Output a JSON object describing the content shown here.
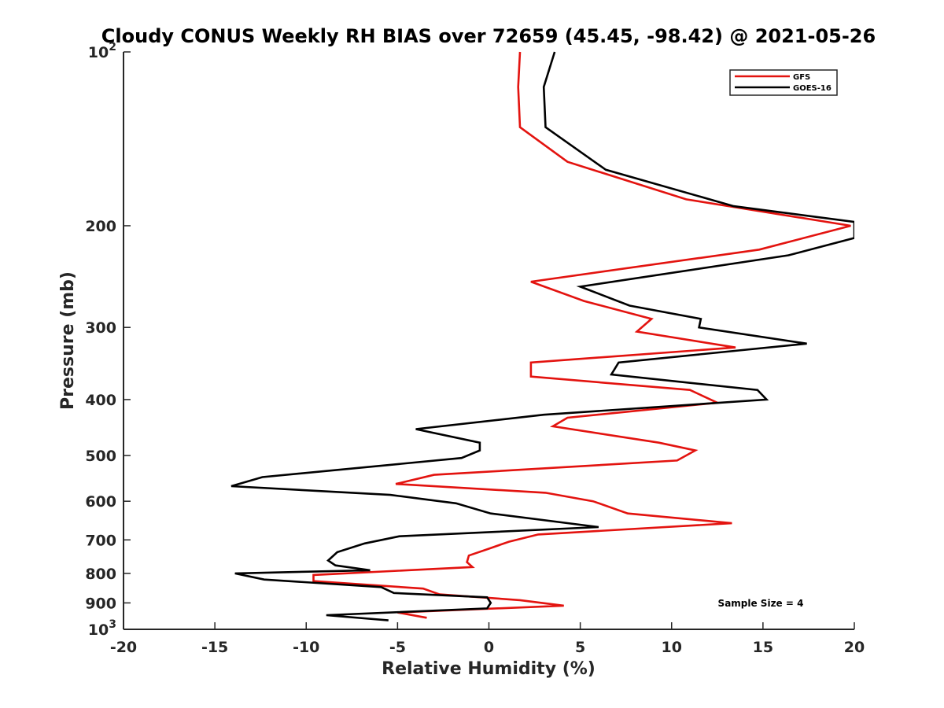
{
  "chart_data": {
    "type": "line",
    "title": "Cloudy CONUS Weekly RH BIAS over 72659 (45.45, -98.42) @ 2021-05-26",
    "xlabel": "Relative Humidity (%)",
    "ylabel": "Pressure (mb)",
    "xlim": [
      -20,
      20
    ],
    "ylim": [
      100,
      1000
    ],
    "yscale": "log",
    "y_reversed": true,
    "xticks": [
      -20,
      -15,
      -10,
      -5,
      0,
      5,
      10,
      15,
      20
    ],
    "xtick_labels": [
      "-20",
      "-15",
      "-10",
      "-5",
      "0",
      "5",
      "10",
      "15",
      "20"
    ],
    "yticks": [
      100,
      200,
      300,
      400,
      500,
      600,
      700,
      800,
      900,
      1000
    ],
    "ytick_labels": [
      {
        "base": "10",
        "exp": "2"
      },
      {
        "base": "200"
      },
      {
        "base": "300"
      },
      {
        "base": "400"
      },
      {
        "base": "500"
      },
      {
        "base": "600"
      },
      {
        "base": "700"
      },
      {
        "base": "800"
      },
      {
        "base": "900"
      },
      {
        "base": "10",
        "exp": "3"
      }
    ],
    "grid": false,
    "legend_position": "top-right",
    "annotation": "Sample Size = 4",
    "series": [
      {
        "name": "GFS",
        "color": "#e3130f",
        "points": [
          [
            1.7,
            100
          ],
          [
            1.6,
            115
          ],
          [
            1.7,
            135
          ],
          [
            4.3,
            155
          ],
          [
            10.8,
            180
          ],
          [
            19.8,
            200
          ],
          [
            14.8,
            220
          ],
          [
            2.3,
            250
          ],
          [
            5.2,
            270
          ],
          [
            8.9,
            290
          ],
          [
            8.1,
            305
          ],
          [
            13.5,
            325
          ],
          [
            2.3,
            345
          ],
          [
            2.3,
            365
          ],
          [
            11.0,
            385
          ],
          [
            12.5,
            405
          ],
          [
            4.3,
            430
          ],
          [
            3.5,
            445
          ],
          [
            9.3,
            475
          ],
          [
            11.3,
            490
          ],
          [
            10.3,
            510
          ],
          [
            -3.0,
            540
          ],
          [
            -5.1,
            560
          ],
          [
            3.1,
            580
          ],
          [
            5.7,
            600
          ],
          [
            7.6,
            630
          ],
          [
            13.3,
            655
          ],
          [
            2.7,
            685
          ],
          [
            1.1,
            705
          ],
          [
            0.0,
            725
          ],
          [
            -1.1,
            745
          ],
          [
            -1.2,
            765
          ],
          [
            -0.9,
            780
          ],
          [
            -9.6,
            805
          ],
          [
            -9.6,
            825
          ],
          [
            -3.6,
            850
          ],
          [
            -2.7,
            870
          ],
          [
            1.7,
            890
          ],
          [
            4.1,
            910
          ],
          [
            -5.0,
            935
          ],
          [
            -3.4,
            955
          ]
        ]
      },
      {
        "name": "GOES-16",
        "color": "#000000",
        "points": [
          [
            3.6,
            100
          ],
          [
            3.0,
            115
          ],
          [
            3.1,
            135
          ],
          [
            6.4,
            160
          ],
          [
            13.4,
            185
          ],
          [
            20.0,
            197
          ],
          [
            20.0,
            210
          ],
          [
            16.4,
            225
          ],
          [
            5.0,
            255
          ],
          [
            7.7,
            275
          ],
          [
            11.6,
            290
          ],
          [
            11.5,
            300
          ],
          [
            17.4,
            320
          ],
          [
            7.1,
            345
          ],
          [
            6.7,
            362
          ],
          [
            14.7,
            385
          ],
          [
            15.2,
            400
          ],
          [
            3.0,
            425
          ],
          [
            -4.0,
            450
          ],
          [
            -0.5,
            475
          ],
          [
            -0.5,
            490
          ],
          [
            -1.5,
            505
          ],
          [
            -12.4,
            545
          ],
          [
            -14.1,
            565
          ],
          [
            -5.4,
            585
          ],
          [
            -1.8,
            605
          ],
          [
            0.1,
            630
          ],
          [
            6.0,
            665
          ],
          [
            -4.9,
            690
          ],
          [
            -6.8,
            710
          ],
          [
            -8.3,
            735
          ],
          [
            -8.8,
            760
          ],
          [
            -8.4,
            775
          ],
          [
            -6.5,
            790
          ],
          [
            -13.9,
            800
          ],
          [
            -12.3,
            820
          ],
          [
            -5.9,
            845
          ],
          [
            -5.2,
            865
          ],
          [
            -0.1,
            880
          ],
          [
            0.1,
            900
          ],
          [
            -0.1,
            920
          ],
          [
            -8.9,
            945
          ],
          [
            -5.5,
            965
          ]
        ]
      }
    ]
  }
}
